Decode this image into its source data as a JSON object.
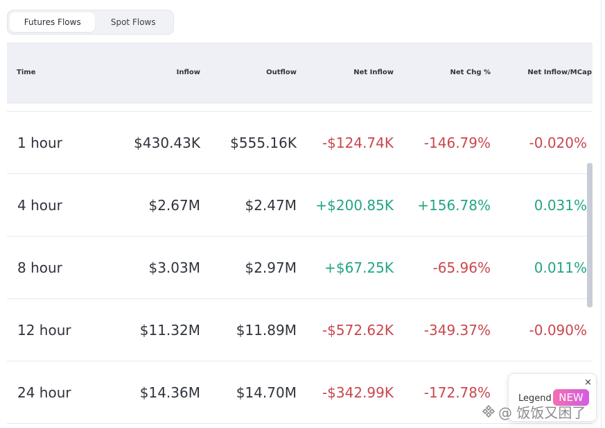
{
  "tabs": [
    {
      "label": "Futures Flows",
      "active": true
    },
    {
      "label": "Spot Flows",
      "active": false
    }
  ],
  "table": {
    "headers": [
      "Time",
      "Inflow",
      "Outflow",
      "Net Inflow",
      "Net Chg %",
      "Net Inflow/MCap"
    ],
    "rows": [
      {
        "time": "1 hour",
        "inflow": "$430.43K",
        "outflow": "$555.16K",
        "net_inflow": "-$124.74K",
        "net_chg": "-146.79%",
        "net_mcap": "-0.020%"
      },
      {
        "time": "4 hour",
        "inflow": "$2.67M",
        "outflow": "$2.47M",
        "net_inflow": "+$200.85K",
        "net_chg": "+156.78%",
        "net_mcap": "0.031%"
      },
      {
        "time": "8 hour",
        "inflow": "$3.03M",
        "outflow": "$2.97M",
        "net_inflow": "+$67.25K",
        "net_chg": "-65.96%",
        "net_mcap": "0.011%"
      },
      {
        "time": "12 hour",
        "inflow": "$11.32M",
        "outflow": "$11.89M",
        "net_inflow": "-$572.62K",
        "net_chg": "-349.37%",
        "net_mcap": "-0.090%"
      },
      {
        "time": "24 hour",
        "inflow": "$14.36M",
        "outflow": "$14.70M",
        "net_inflow": "-$342.99K",
        "net_chg": "-172.78%",
        "net_mcap": ""
      }
    ]
  },
  "legend": {
    "label": "Legend",
    "badge": "NEW",
    "close": "×"
  },
  "watermark": {
    "text": "@ 饭饭又困了"
  },
  "colors": {
    "negative": "#c9474d",
    "positive": "#22a485",
    "header_bg": "#eef0f5"
  }
}
